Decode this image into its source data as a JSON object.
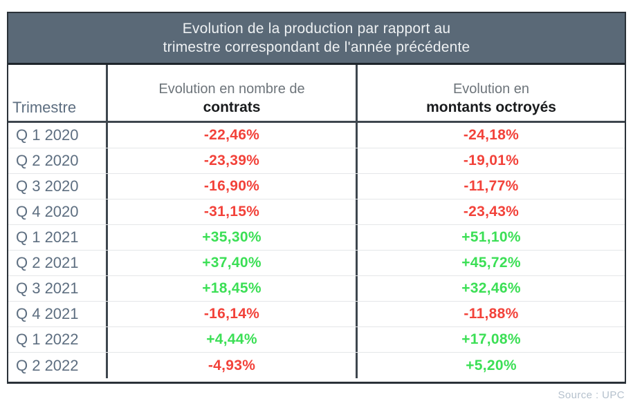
{
  "table": {
    "title": {
      "line1": "Evolution de la production par rapport au",
      "line2": "trimestre correspondant de l'année précédente"
    },
    "header": {
      "trimestre": "Trimestre",
      "contracts_line1": "Evolution en nombre de",
      "contracts_line2": "contrats",
      "amounts_line1": "Evolution en",
      "amounts_line2": "montants octroyés"
    },
    "rows": [
      {
        "trimestre": "Q 1 2020",
        "contracts": "-22,46%",
        "amounts": "-24,18%",
        "contracts_trend": "down",
        "amounts_trend": "down"
      },
      {
        "trimestre": "Q 2 2020",
        "contracts": "-23,39%",
        "amounts": "-19,01%",
        "contracts_trend": "down",
        "amounts_trend": "down"
      },
      {
        "trimestre": "Q 3 2020",
        "contracts": "-16,90%",
        "amounts": "-11,77%",
        "contracts_trend": "down",
        "amounts_trend": "down"
      },
      {
        "trimestre": "Q 4 2020",
        "contracts": "-31,15%",
        "amounts": "-23,43%",
        "contracts_trend": "down",
        "amounts_trend": "down"
      },
      {
        "trimestre": "Q 1 2021",
        "contracts": "+35,30%",
        "amounts": "+51,10%",
        "contracts_trend": "up",
        "amounts_trend": "up"
      },
      {
        "trimestre": "Q 2 2021",
        "contracts": "+37,40%",
        "amounts": "+45,72%",
        "contracts_trend": "up",
        "amounts_trend": "up"
      },
      {
        "trimestre": "Q 3 2021",
        "contracts": "+18,45%",
        "amounts": "+32,46%",
        "contracts_trend": "up",
        "amounts_trend": "up"
      },
      {
        "trimestre": "Q 4 2021",
        "contracts": "-16,14%",
        "amounts": "-11,88%",
        "contracts_trend": "down",
        "amounts_trend": "down"
      },
      {
        "trimestre": "Q 1 2022",
        "contracts": "+4,44%",
        "amounts": "+17,08%",
        "contracts_trend": "up",
        "amounts_trend": "up"
      },
      {
        "trimestre": "Q 2 2022",
        "contracts": "-4,93%",
        "amounts": "+5,20%",
        "contracts_trend": "down",
        "amounts_trend": "up"
      }
    ]
  },
  "source_label": "Source : UPC",
  "colors": {
    "title_background": "#5a6977",
    "title_text": "#eef1f3",
    "negative": "#f2423a",
    "positive": "#3bdf55",
    "label_text": "#5d6e80",
    "header_secondary": "#6d747a",
    "header_bold": "#191b1d",
    "source_text": "#b5c1cd",
    "border_dark": "#1d242a",
    "divider": "#3e464e",
    "row_line": "#e4e6e8"
  },
  "chart_data": {
    "type": "table",
    "title": "Evolution de la production par rapport au trimestre correspondant de l'année précédente",
    "columns": [
      "Trimestre",
      "Evolution en nombre de contrats",
      "Evolution en montants octroyés"
    ],
    "rows": [
      [
        "Q 1 2020",
        "-22,46%",
        "-24,18%"
      ],
      [
        "Q 2 2020",
        "-23,39%",
        "-19,01%"
      ],
      [
        "Q 3 2020",
        "-16,90%",
        "-11,77%"
      ],
      [
        "Q 4 2020",
        "-31,15%",
        "-23,43%"
      ],
      [
        "Q 1 2021",
        "+35,30%",
        "+51,10%"
      ],
      [
        "Q 2 2021",
        "+37,40%",
        "+45,72%"
      ],
      [
        "Q 3 2021",
        "+18,45%",
        "+32,46%"
      ],
      [
        "Q 4 2021",
        "-16,14%",
        "-11,88%"
      ],
      [
        "Q 1 2022",
        "+4,44%",
        "+17,08%"
      ],
      [
        "Q 2 2022",
        "-4,93%",
        "+5,20%"
      ]
    ],
    "series_numeric": [
      {
        "name": "Evolution en nombre de contrats",
        "values": [
          -22.46,
          -23.39,
          -16.9,
          -31.15,
          35.3,
          37.4,
          18.45,
          -16.14,
          4.44,
          -4.93
        ]
      },
      {
        "name": "Evolution en montants octroyés",
        "values": [
          -24.18,
          -19.01,
          -11.77,
          -23.43,
          51.1,
          45.72,
          32.46,
          -11.88,
          17.08,
          5.2
        ]
      }
    ],
    "source": "Source : UPC"
  }
}
